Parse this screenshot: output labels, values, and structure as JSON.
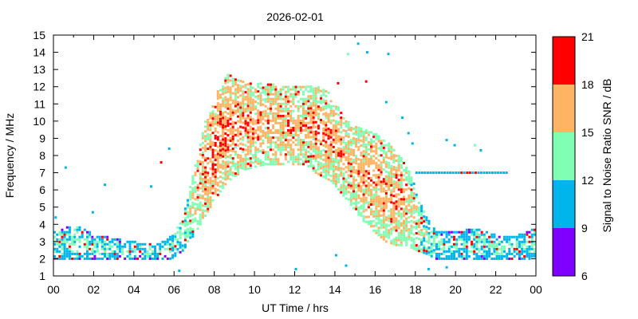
{
  "chart_data": {
    "type": "heatmap",
    "title": "2026-02-01",
    "xlabel": "UT Time / hrs",
    "ylabel": "Frequency / MHz",
    "xlim": [
      0,
      24
    ],
    "ylim": [
      1,
      15
    ],
    "x_ticks": [
      "00",
      "02",
      "04",
      "06",
      "08",
      "10",
      "12",
      "14",
      "16",
      "18",
      "20",
      "22",
      "00"
    ],
    "y_ticks": [
      "1",
      "2",
      "3",
      "4",
      "5",
      "6",
      "7",
      "8",
      "9",
      "10",
      "11",
      "12",
      "13",
      "14",
      "15"
    ],
    "colorbar": {
      "label": "Signal to Noise Ratio SNR / dB",
      "range": [
        6,
        21
      ],
      "ticks": [
        "6",
        "9",
        "12",
        "15",
        "18",
        "21"
      ],
      "bands": [
        {
          "from": 6,
          "to": 9,
          "color": "#8000ff"
        },
        {
          "from": 9,
          "to": 12,
          "color": "#00b4ec"
        },
        {
          "from": 12,
          "to": 15,
          "color": "#80ffb4"
        },
        {
          "from": 15,
          "to": 18,
          "color": "#ffb464"
        },
        {
          "from": 18,
          "to": 21,
          "color": "#ff0000"
        }
      ]
    },
    "profile": [
      [
        0.0,
        2.0,
        3.6,
        11
      ],
      [
        1.0,
        2.0,
        4.0,
        11
      ],
      [
        2.0,
        2.0,
        3.4,
        11
      ],
      [
        3.0,
        2.0,
        3.2,
        10.5
      ],
      [
        4.0,
        2.0,
        3.0,
        10.5
      ],
      [
        5.0,
        2.0,
        2.8,
        10.5
      ],
      [
        5.8,
        2.0,
        3.3,
        11
      ],
      [
        6.4,
        2.5,
        4.5,
        12
      ],
      [
        7.0,
        3.5,
        7.5,
        14
      ],
      [
        7.5,
        4.5,
        10.0,
        15.5
      ],
      [
        8.0,
        5.5,
        11.5,
        16
      ],
      [
        8.6,
        6.5,
        12.8,
        16
      ],
      [
        9.5,
        7.2,
        12.2,
        15.5
      ],
      [
        10.5,
        7.5,
        12.2,
        15
      ],
      [
        11.5,
        7.5,
        12.0,
        15
      ],
      [
        12.5,
        7.5,
        12.0,
        15
      ],
      [
        13.0,
        7.0,
        12.2,
        15.5
      ],
      [
        13.8,
        6.5,
        11.5,
        15.5
      ],
      [
        14.5,
        5.5,
        10.0,
        15
      ],
      [
        15.5,
        4.0,
        9.5,
        15
      ],
      [
        16.5,
        3.0,
        9.0,
        15
      ],
      [
        17.0,
        2.8,
        8.2,
        15
      ],
      [
        17.5,
        2.8,
        7.5,
        14.5
      ],
      [
        18.0,
        2.5,
        6.0,
        13
      ],
      [
        18.5,
        2.3,
        4.5,
        12
      ],
      [
        19.0,
        2.0,
        3.6,
        11
      ],
      [
        20.0,
        2.0,
        3.6,
        11
      ],
      [
        21.0,
        2.0,
        3.8,
        11
      ],
      [
        22.0,
        2.0,
        3.4,
        11
      ],
      [
        23.0,
        2.0,
        3.4,
        11
      ],
      [
        24.0,
        2.0,
        3.8,
        11
      ]
    ],
    "sparse_points": [
      [
        0.55,
        7.3,
        10
      ],
      [
        2.5,
        6.3,
        10
      ],
      [
        4.8,
        6.2,
        10
      ],
      [
        5.3,
        7.6,
        18
      ],
      [
        5.7,
        8.4,
        10
      ],
      [
        6.2,
        1.3,
        10
      ],
      [
        0.05,
        4.4,
        10
      ],
      [
        1.9,
        4.7,
        10
      ],
      [
        12.0,
        1.4,
        10
      ],
      [
        14.0,
        2.2,
        10
      ],
      [
        14.1,
        12.2,
        19
      ],
      [
        14.6,
        13.9,
        13
      ],
      [
        15.1,
        14.5,
        10
      ],
      [
        15.5,
        12.3,
        19
      ],
      [
        15.55,
        14.0,
        10
      ],
      [
        16.6,
        13.9,
        10
      ],
      [
        16.5,
        11.1,
        10
      ],
      [
        17.3,
        10.2,
        10
      ],
      [
        17.6,
        9.3,
        10
      ],
      [
        17.8,
        8.7,
        10
      ],
      [
        19.5,
        8.9,
        10
      ],
      [
        19.9,
        8.6,
        10
      ],
      [
        20.9,
        8.6,
        13
      ],
      [
        21.2,
        8.3,
        10
      ],
      [
        19.5,
        1.5,
        10
      ],
      [
        18.6,
        1.4,
        10
      ],
      [
        14.5,
        1.6,
        10
      ]
    ],
    "streak_7mhz": {
      "freq": 7.0,
      "from": 18.0,
      "to": 22.6,
      "snr": 10,
      "hot_hours": [
        20.2,
        20.6,
        21.0
      ]
    },
    "note": "Densely packed short-tick traces; profile rows = [UT hour, lower MHz, upper MHz, typical SNR dB]"
  }
}
